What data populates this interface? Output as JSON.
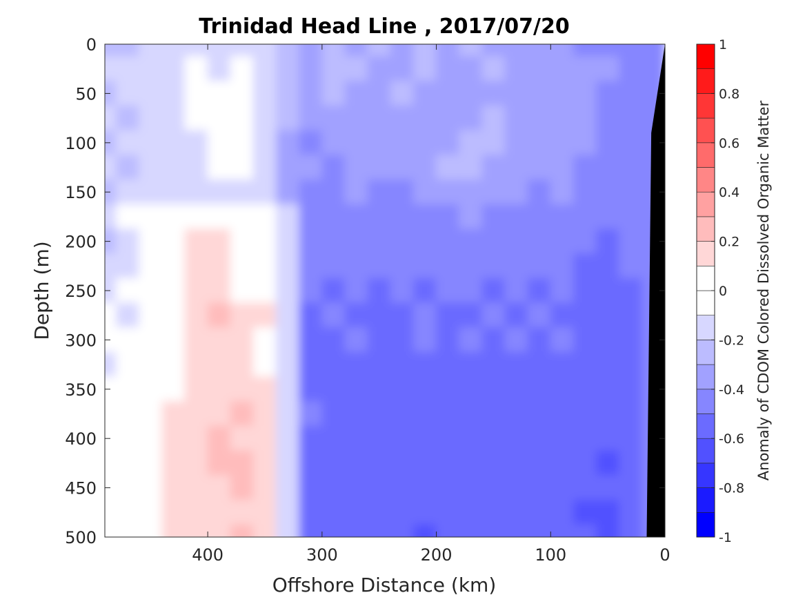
{
  "chart_data": {
    "type": "heatmap",
    "title": "Trinidad Head Line , 2017/07/20",
    "xlabel": "Offshore Distance (km)",
    "ylabel": "Depth (m)",
    "xlim": [
      490,
      0
    ],
    "ylim": [
      500,
      0
    ],
    "x_reversed": true,
    "y_reversed": true,
    "x_ticks": [
      400,
      300,
      200,
      100,
      0
    ],
    "x_tick_labels": [
      "400",
      "300",
      "200",
      "100",
      "0"
    ],
    "y_ticks": [
      0,
      50,
      100,
      150,
      200,
      250,
      300,
      350,
      400,
      450,
      500
    ],
    "y_tick_labels": [
      "0",
      "50",
      "100",
      "150",
      "200",
      "250",
      "300",
      "350",
      "400",
      "450",
      "500"
    ],
    "colorbar": {
      "label": "Anomaly of CDOM Colored Dissolved Organic Matter",
      "min": -1,
      "max": 1,
      "levels": [
        -1,
        -0.9,
        -0.8,
        -0.7,
        -0.6,
        -0.5,
        -0.4,
        -0.3,
        -0.2,
        -0.1,
        0,
        0.1,
        0.2,
        0.3,
        0.4,
        0.5,
        0.6,
        0.7,
        0.8,
        0.9,
        1
      ],
      "ticks": [
        -1,
        -0.8,
        -0.6,
        -0.4,
        -0.2,
        0,
        0.2,
        0.4,
        0.6,
        0.8,
        1
      ],
      "tick_labels": [
        "-1",
        "-0.8",
        "-0.6",
        "-0.4",
        "-0.2",
        "0",
        "0.2",
        "0.4",
        "0.6",
        "0.8",
        "1"
      ],
      "colormap": "blue-white-red",
      "neg_color": "#0000ff",
      "pos_color": "#ff0000"
    },
    "x": [
      490,
      470,
      450,
      430,
      410,
      390,
      370,
      350,
      330,
      310,
      290,
      270,
      250,
      230,
      210,
      190,
      170,
      150,
      130,
      110,
      90,
      70,
      50,
      30,
      10
    ],
    "y": [
      0,
      25,
      50,
      75,
      100,
      125,
      150,
      175,
      200,
      225,
      250,
      275,
      300,
      325,
      350,
      375,
      400,
      425,
      450,
      475,
      500
    ],
    "z": [
      [
        -0.25,
        -0.3,
        -0.2,
        -0.15,
        -0.15,
        -0.2,
        -0.15,
        -0.2,
        -0.3,
        -0.35,
        -0.3,
        -0.35,
        -0.3,
        -0.35,
        -0.3,
        -0.35,
        -0.3,
        -0.35,
        -0.35,
        -0.4,
        -0.35,
        -0.45,
        -0.5,
        -0.45,
        -0.45
      ],
      [
        -0.2,
        -0.15,
        -0.15,
        -0.15,
        -0.1,
        -0.15,
        -0.1,
        -0.15,
        -0.3,
        -0.35,
        -0.3,
        -0.25,
        -0.35,
        -0.35,
        -0.3,
        -0.35,
        -0.35,
        -0.3,
        -0.35,
        -0.4,
        -0.4,
        -0.35,
        -0.4,
        -0.45,
        -0.45
      ],
      [
        -0.25,
        -0.2,
        -0.15,
        -0.15,
        -0.1,
        -0.05,
        -0.1,
        -0.15,
        -0.3,
        -0.35,
        -0.3,
        -0.35,
        -0.35,
        -0.3,
        -0.35,
        -0.4,
        -0.35,
        -0.35,
        -0.4,
        -0.35,
        -0.35,
        -0.4,
        -0.45,
        -0.45,
        -0.45
      ],
      [
        -0.2,
        -0.25,
        -0.15,
        -0.15,
        -0.1,
        -0.05,
        -0.1,
        -0.15,
        -0.3,
        -0.4,
        -0.35,
        -0.35,
        -0.4,
        -0.35,
        -0.35,
        -0.4,
        -0.35,
        -0.3,
        -0.35,
        -0.4,
        -0.35,
        -0.4,
        -0.45,
        -0.45,
        -0.45
      ],
      [
        -0.25,
        -0.2,
        -0.15,
        -0.2,
        -0.15,
        -0.05,
        -0.1,
        -0.15,
        -0.35,
        -0.45,
        -0.35,
        -0.4,
        -0.35,
        -0.4,
        -0.35,
        -0.35,
        -0.25,
        -0.3,
        -0.35,
        -0.4,
        -0.4,
        -0.35,
        -0.45,
        -0.5,
        -0.45
      ],
      [
        -0.2,
        -0.25,
        -0.15,
        -0.15,
        -0.15,
        -0.1,
        -0.1,
        -0.15,
        -0.35,
        -0.4,
        -0.45,
        -0.4,
        -0.4,
        -0.35,
        -0.4,
        -0.3,
        -0.25,
        -0.35,
        -0.4,
        -0.35,
        -0.4,
        -0.45,
        -0.45,
        -0.5,
        -0.45
      ],
      [
        -0.25,
        -0.2,
        -0.2,
        -0.15,
        -0.15,
        -0.15,
        -0.15,
        -0.15,
        -0.35,
        -0.45,
        -0.45,
        -0.4,
        -0.45,
        -0.45,
        -0.4,
        -0.35,
        -0.35,
        -0.4,
        -0.4,
        -0.45,
        -0.4,
        -0.45,
        -0.5,
        -0.5,
        -0.45
      ],
      [
        -0.2,
        0.05,
        0.0,
        -0.05,
        0.05,
        0.0,
        0.0,
        0.05,
        -0.2,
        -0.45,
        -0.45,
        -0.5,
        -0.45,
        -0.45,
        -0.5,
        -0.45,
        -0.4,
        -0.45,
        -0.45,
        -0.45,
        -0.5,
        -0.5,
        -0.5,
        -0.5,
        -0.45
      ],
      [
        -0.25,
        -0.2,
        0.05,
        0.0,
        0.1,
        0.15,
        0.05,
        0.05,
        -0.2,
        -0.45,
        -0.5,
        -0.45,
        -0.5,
        -0.45,
        -0.45,
        -0.5,
        -0.45,
        -0.45,
        -0.5,
        -0.45,
        -0.5,
        -0.5,
        -0.55,
        -0.5,
        -0.45
      ],
      [
        -0.2,
        -0.15,
        0.0,
        0.05,
        0.1,
        0.1,
        0.05,
        0.0,
        -0.2,
        -0.5,
        -0.45,
        -0.5,
        -0.45,
        -0.5,
        -0.5,
        -0.45,
        -0.5,
        -0.5,
        -0.45,
        -0.5,
        -0.5,
        -0.55,
        -0.6,
        -0.5,
        -0.45
      ],
      [
        -0.15,
        -0.1,
        0.0,
        0.05,
        0.1,
        0.15,
        0.05,
        0.05,
        -0.2,
        -0.5,
        -0.55,
        -0.5,
        -0.55,
        -0.5,
        -0.55,
        -0.5,
        -0.5,
        -0.55,
        -0.5,
        -0.55,
        -0.5,
        -0.55,
        -0.55,
        -0.55,
        -0.45
      ],
      [
        -0.05,
        -0.15,
        0.05,
        0.05,
        0.15,
        0.2,
        0.15,
        0.1,
        -0.2,
        -0.55,
        -0.5,
        -0.55,
        -0.6,
        -0.55,
        -0.5,
        -0.55,
        -0.55,
        -0.5,
        -0.55,
        -0.5,
        -0.55,
        -0.55,
        -0.6,
        -0.55,
        -0.45
      ],
      [
        -0.1,
        -0.1,
        0.0,
        0.05,
        0.15,
        0.15,
        0.1,
        0.05,
        -0.2,
        -0.55,
        -0.55,
        -0.5,
        -0.55,
        -0.55,
        -0.5,
        -0.55,
        -0.5,
        -0.55,
        -0.5,
        -0.55,
        -0.5,
        -0.55,
        -0.55,
        -0.55,
        -0.45
      ],
      [
        -0.15,
        -0.05,
        0.05,
        0.05,
        0.1,
        0.1,
        0.15,
        0.05,
        -0.2,
        -0.55,
        -0.55,
        -0.6,
        -0.55,
        -0.55,
        -0.55,
        -0.6,
        -0.55,
        -0.55,
        -0.6,
        -0.55,
        -0.55,
        -0.55,
        -0.6,
        -0.55,
        -0.45
      ],
      [
        -0.1,
        -0.05,
        0.05,
        0.05,
        0.1,
        0.15,
        0.1,
        0.1,
        -0.2,
        -0.55,
        -0.55,
        -0.55,
        -0.6,
        -0.55,
        -0.6,
        -0.55,
        -0.6,
        -0.55,
        -0.6,
        -0.6,
        -0.55,
        -0.55,
        -0.6,
        -0.55,
        -0.45
      ],
      [
        -0.05,
        0.0,
        0.05,
        0.1,
        0.15,
        0.1,
        0.2,
        0.1,
        -0.2,
        -0.5,
        -0.55,
        -0.6,
        -0.55,
        -0.6,
        -0.55,
        -0.55,
        -0.6,
        -0.55,
        -0.55,
        -0.6,
        -0.55,
        -0.55,
        -0.6,
        -0.55,
        -0.45
      ],
      [
        -0.05,
        0.05,
        0.0,
        0.1,
        0.15,
        0.2,
        0.15,
        0.1,
        -0.2,
        -0.55,
        -0.6,
        -0.55,
        -0.6,
        -0.55,
        -0.6,
        -0.55,
        -0.6,
        -0.6,
        -0.55,
        -0.6,
        -0.6,
        -0.6,
        -0.6,
        -0.55,
        -0.45
      ],
      [
        -0.1,
        0.0,
        0.05,
        0.1,
        0.15,
        0.2,
        0.2,
        0.1,
        -0.2,
        -0.55,
        -0.6,
        -0.55,
        -0.6,
        -0.6,
        -0.55,
        -0.6,
        -0.55,
        -0.6,
        -0.6,
        -0.55,
        -0.6,
        -0.6,
        -0.65,
        -0.55,
        -0.45
      ],
      [
        -0.05,
        0.0,
        0.05,
        0.1,
        0.15,
        0.15,
        0.2,
        0.1,
        -0.2,
        -0.55,
        -0.6,
        -0.6,
        -0.6,
        -0.55,
        -0.6,
        -0.55,
        -0.6,
        -0.6,
        -0.6,
        -0.6,
        -0.6,
        -0.6,
        -0.6,
        -0.55,
        -0.45
      ],
      [
        -0.1,
        0.0,
        0.05,
        0.1,
        0.1,
        0.15,
        0.15,
        0.1,
        -0.2,
        -0.55,
        -0.55,
        -0.6,
        -0.55,
        -0.6,
        -0.6,
        -0.6,
        -0.55,
        -0.6,
        -0.6,
        -0.6,
        -0.6,
        -0.65,
        -0.65,
        -0.55,
        -0.45
      ],
      [
        -0.05,
        0.05,
        0.05,
        0.1,
        0.15,
        0.15,
        0.2,
        0.1,
        -0.2,
        -0.55,
        -0.6,
        -0.55,
        -0.6,
        -0.6,
        -0.65,
        -0.6,
        -0.6,
        -0.6,
        -0.6,
        -0.6,
        -0.6,
        -0.6,
        -0.7,
        -0.55,
        -0.45
      ]
    ],
    "bathymetry_polygon": [
      [
        16,
        500
      ],
      [
        0,
        500
      ],
      [
        0,
        0
      ],
      [
        12,
        90
      ]
    ],
    "grid": false
  }
}
